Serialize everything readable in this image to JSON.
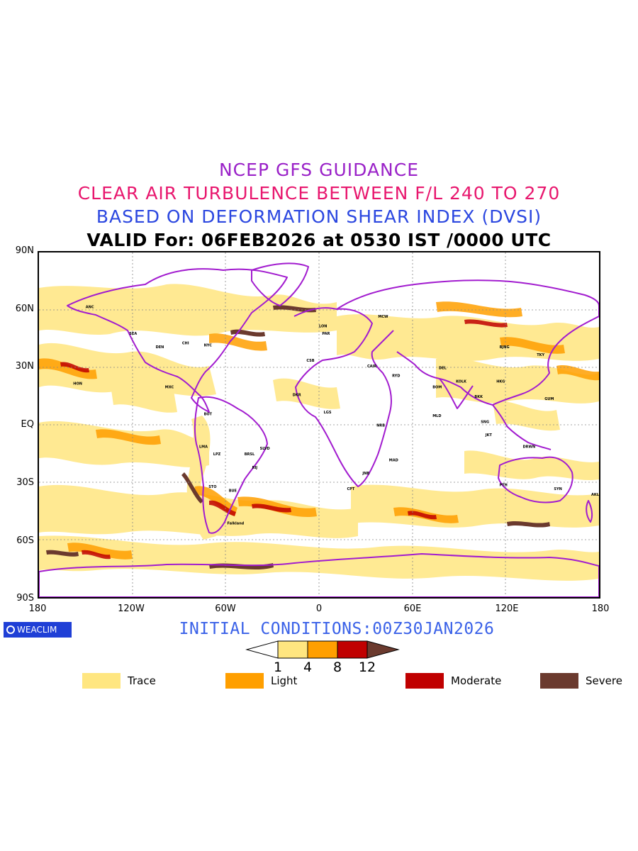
{
  "header": {
    "line1": "NCEP GFS GUIDANCE",
    "line2": "CLEAR AIR TURBULENCE BETWEEN F/L 240 TO 270",
    "line3": "BASED ON DEFORMATION SHEAR INDEX (DVSI)",
    "line4": "VALID For: 06FEB2026 at 0530 IST /0000 UTC"
  },
  "axes": {
    "lat_labels": [
      "90N",
      "60N",
      "30N",
      "EQ",
      "30S",
      "60S",
      "90S"
    ],
    "lon_labels": [
      "180",
      "120W",
      "60W",
      "0",
      "60E",
      "120E",
      "180"
    ]
  },
  "map": {
    "stations": [
      {
        "label": "ANC",
        "lon": -150,
        "lat": 61
      },
      {
        "label": "SEA",
        "lon": -122,
        "lat": 47
      },
      {
        "label": "DEN",
        "lon": -105,
        "lat": 40
      },
      {
        "label": "CHI",
        "lon": -88,
        "lat": 42
      },
      {
        "label": "NYC",
        "lon": -74,
        "lat": 41
      },
      {
        "label": "HON",
        "lon": -158,
        "lat": 21
      },
      {
        "label": "MXC",
        "lon": -99,
        "lat": 19
      },
      {
        "label": "BOT",
        "lon": -74,
        "lat": 5
      },
      {
        "label": "LMA",
        "lon": -77,
        "lat": -12
      },
      {
        "label": "LPZ",
        "lon": -68,
        "lat": -16
      },
      {
        "label": "BRSL",
        "lon": -48,
        "lat": -16
      },
      {
        "label": "SLVD",
        "lon": -38,
        "lat": -13
      },
      {
        "label": "RIJ",
        "lon": -43,
        "lat": -23
      },
      {
        "label": "STO",
        "lon": -71,
        "lat": -33
      },
      {
        "label": "BUE",
        "lon": -58,
        "lat": -35
      },
      {
        "label": "Falkland",
        "lon": -59,
        "lat": -52
      },
      {
        "label": "LON",
        "lon": 0,
        "lat": 51
      },
      {
        "label": "PAR",
        "lon": 2,
        "lat": 47
      },
      {
        "label": "MCW",
        "lon": 38,
        "lat": 56
      },
      {
        "label": "CSB",
        "lon": -8,
        "lat": 33
      },
      {
        "label": "CAIR",
        "lon": 31,
        "lat": 30
      },
      {
        "label": "RYD",
        "lon": 47,
        "lat": 25
      },
      {
        "label": "DEL",
        "lon": 77,
        "lat": 29
      },
      {
        "label": "BOM",
        "lon": 73,
        "lat": 19
      },
      {
        "label": "MLD",
        "lon": 73,
        "lat": 4
      },
      {
        "label": "KOLK",
        "lon": 88,
        "lat": 22
      },
      {
        "label": "BJNG",
        "lon": 116,
        "lat": 40
      },
      {
        "label": "TKY",
        "lon": 140,
        "lat": 36
      },
      {
        "label": "HKG",
        "lon": 114,
        "lat": 22
      },
      {
        "label": "BKK",
        "lon": 100,
        "lat": 14
      },
      {
        "label": "SNG",
        "lon": 104,
        "lat": 1
      },
      {
        "label": "JKT",
        "lon": 107,
        "lat": -6
      },
      {
        "label": "GUM",
        "lon": 145,
        "lat": 13
      },
      {
        "label": "DRWN",
        "lon": 131,
        "lat": -12
      },
      {
        "label": "PTH",
        "lon": 116,
        "lat": -32
      },
      {
        "label": "SYN",
        "lon": 151,
        "lat": -34
      },
      {
        "label": "AKL",
        "lon": 175,
        "lat": -37
      },
      {
        "label": "NRB",
        "lon": 37,
        "lat": -1
      },
      {
        "label": "JNB",
        "lon": 28,
        "lat": -26
      },
      {
        "label": "CPT",
        "lon": 18,
        "lat": -34
      },
      {
        "label": "MAD",
        "lon": 45,
        "lat": -19
      },
      {
        "label": "DKR",
        "lon": -17,
        "lat": 15
      },
      {
        "label": "LGS",
        "lon": 3,
        "lat": 6
      }
    ]
  },
  "footer": {
    "logo_text": "WEACLIM",
    "initial_conditions": "INITIAL CONDITIONS:00Z30JAN2026"
  },
  "legend": {
    "scale_ticks": [
      "1",
      "4",
      "8",
      "12"
    ],
    "categories": [
      {
        "label": "Trace",
        "color": "#ffe680"
      },
      {
        "label": "Light",
        "color": "#ff9f00"
      },
      {
        "label": "Moderate",
        "color": "#c00000"
      },
      {
        "label": "Severe",
        "color": "#6b3a2e"
      }
    ]
  },
  "colors": {
    "coastline": "#a21ccf",
    "grid": "#888888"
  }
}
